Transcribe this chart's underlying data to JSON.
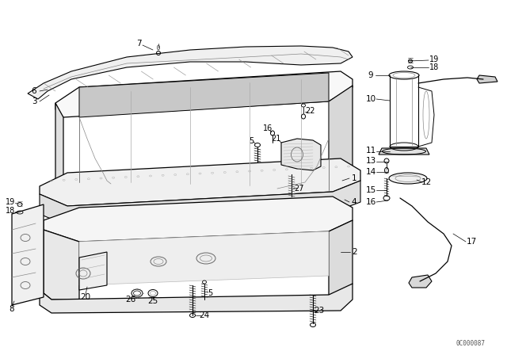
{
  "bg_color": "#ffffff",
  "line_color": "#000000",
  "diagram_code": "0C000087",
  "label_size": 7.5,
  "lw": 0.7
}
